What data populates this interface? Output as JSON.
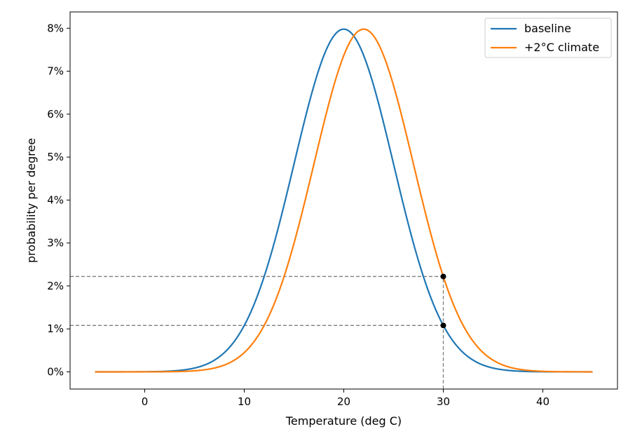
{
  "chart_data": {
    "type": "line",
    "title": "",
    "xlabel": "Temperature (deg C)",
    "ylabel": "probability per degree",
    "xlim": [
      -7.5,
      47.5
    ],
    "ylim": [
      -0.004,
      0.0838
    ],
    "x_ticks": [
      0,
      10,
      20,
      30,
      40
    ],
    "x_tick_labels": [
      "0",
      "10",
      "20",
      "30",
      "40"
    ],
    "highlighted_x_tick": "30",
    "highlight_color": "#cc0000",
    "y_ticks": [
      0,
      0.01,
      0.02,
      0.03,
      0.04,
      0.05,
      0.06,
      0.07,
      0.08
    ],
    "y_tick_labels": [
      "0%",
      "1%",
      "2%",
      "3%",
      "4%",
      "5%",
      "6%",
      "7%",
      "8%"
    ],
    "grid": false,
    "legend": "top-right",
    "series": [
      {
        "name": "baseline",
        "color": "#1f77b4",
        "distribution": "normal",
        "mean": 20,
        "std": 5,
        "x_range": [
          -5,
          45
        ]
      },
      {
        "name": "+2°C climate",
        "color": "#ff7f0e",
        "distribution": "normal",
        "mean": 22,
        "std": 5,
        "x_range": [
          -5,
          45
        ]
      }
    ],
    "markers": [
      {
        "x": 30,
        "y": 0.0108,
        "series": "baseline"
      },
      {
        "x": 30,
        "y": 0.0222,
        "series": "+2°C climate"
      }
    ],
    "reference_lines": [
      {
        "type": "horizontal",
        "y": 0.0108,
        "x_to": 30
      },
      {
        "type": "horizontal",
        "y": 0.0222,
        "x_to": 30
      },
      {
        "type": "vertical",
        "x": 30,
        "y_to": 0.0222
      }
    ]
  }
}
